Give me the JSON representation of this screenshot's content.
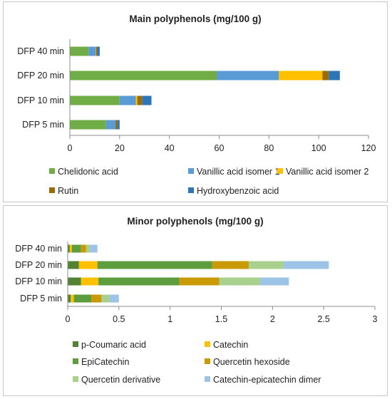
{
  "chart_data": [
    {
      "type": "bar",
      "orientation": "horizontal",
      "stacked": true,
      "title": "Main polyphenols (mg/100 g)",
      "categories": [
        "DFP 5 min",
        "DFP 10 min",
        "DFP 20 min",
        "DFP 40 min"
      ],
      "xlim": [
        0,
        120
      ],
      "xticks": [
        0,
        20,
        40,
        60,
        80,
        100,
        120
      ],
      "grid": false,
      "legend_position": "bottom",
      "series": [
        {
          "name": "Chelidonic acid",
          "color": "#70AD47",
          "values": [
            14.5,
            20.0,
            59.0,
            7.5
          ]
        },
        {
          "name": "Vanillic acid isomer 1",
          "color": "#5B9BD5",
          "values": [
            3.8,
            6.5,
            25.0,
            2.8
          ]
        },
        {
          "name": "Vanillic acid isomer 2",
          "color": "#FFC000",
          "values": [
            0.0,
            0.6,
            17.5,
            0.2
          ]
        },
        {
          "name": "Rutin",
          "color": "#9E6A03",
          "values": [
            0.7,
            1.9,
            2.5,
            0.4
          ]
        },
        {
          "name": "Hydroxybenzoic acid",
          "color": "#2E75B6",
          "values": [
            1.0,
            3.8,
            4.5,
            1.1
          ]
        }
      ]
    },
    {
      "type": "bar",
      "orientation": "horizontal",
      "stacked": true,
      "title": "Minor polyphenols (mg/100 g)",
      "categories": [
        "DFP 5 min",
        "DFP 10 min",
        "DFP 20 min",
        "DFP 40 min"
      ],
      "xlim": [
        0,
        3
      ],
      "xticks": [
        0,
        0.5,
        1,
        1.5,
        2,
        2.5,
        3
      ],
      "grid": false,
      "legend_position": "bottom",
      "series": [
        {
          "name": "p-Coumaric acid",
          "color": "#548235",
          "values": [
            0.03,
            0.13,
            0.11,
            0.02
          ]
        },
        {
          "name": "Catechin",
          "color": "#FFC000",
          "values": [
            0.03,
            0.17,
            0.18,
            0.02
          ]
        },
        {
          "name": "EpiCatechin",
          "color": "#5E9D3E",
          "values": [
            0.17,
            0.79,
            1.12,
            0.09
          ]
        },
        {
          "name": "Quercetin hexoside",
          "color": "#C99A06",
          "values": [
            0.1,
            0.39,
            0.36,
            0.05
          ]
        },
        {
          "name": "Quercetin derivative",
          "color": "#A9D18E",
          "values": [
            0.08,
            0.4,
            0.34,
            0.04
          ]
        },
        {
          "name": "Catechin-epicatechin dimer",
          "color": "#9DC3E6",
          "values": [
            0.09,
            0.28,
            0.44,
            0.07
          ]
        }
      ]
    }
  ]
}
